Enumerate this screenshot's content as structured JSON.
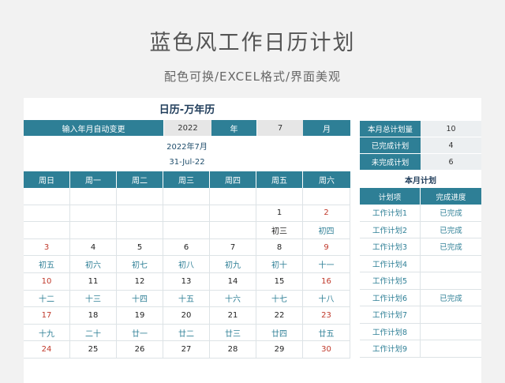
{
  "title": "蓝色风工作日历计划",
  "subtitle": "配色可换/EXCEL格式/界面美观",
  "calendar": {
    "heading": "日历-万年历",
    "input_label": "输入年月自动变更",
    "year_value": "2022",
    "year_label": "年",
    "month_value": "7",
    "month_label": "月",
    "year_month_display": "2022年7月",
    "date_display": "31-Jul-22",
    "weekdays": [
      "周日",
      "周一",
      "周二",
      "周三",
      "周四",
      "周五",
      "周六"
    ],
    "rows": [
      [
        {
          "t": ""
        },
        {
          "t": ""
        },
        {
          "t": ""
        },
        {
          "t": ""
        },
        {
          "t": ""
        },
        {
          "t": ""
        },
        {
          "t": ""
        }
      ],
      [
        {
          "t": ""
        },
        {
          "t": ""
        },
        {
          "t": ""
        },
        {
          "t": ""
        },
        {
          "t": ""
        },
        {
          "t": "1"
        },
        {
          "t": "2",
          "red": true
        }
      ],
      [
        {
          "t": ""
        },
        {
          "t": ""
        },
        {
          "t": ""
        },
        {
          "t": ""
        },
        {
          "t": ""
        },
        {
          "t": "初三"
        },
        {
          "t": "初四",
          "lunar": true
        }
      ],
      [
        {
          "t": "3",
          "red": true
        },
        {
          "t": "4"
        },
        {
          "t": "5"
        },
        {
          "t": "6"
        },
        {
          "t": "7"
        },
        {
          "t": "8"
        },
        {
          "t": "9",
          "red": true
        }
      ],
      [
        {
          "t": "初五",
          "lunar": true
        },
        {
          "t": "初六",
          "lunar": true
        },
        {
          "t": "初七",
          "lunar": true
        },
        {
          "t": "初八",
          "lunar": true
        },
        {
          "t": "初九",
          "lunar": true
        },
        {
          "t": "初十",
          "lunar": true
        },
        {
          "t": "十一",
          "lunar": true
        }
      ],
      [
        {
          "t": "10",
          "red": true
        },
        {
          "t": "11"
        },
        {
          "t": "12"
        },
        {
          "t": "13"
        },
        {
          "t": "14"
        },
        {
          "t": "15"
        },
        {
          "t": "16",
          "red": true
        }
      ],
      [
        {
          "t": "十二",
          "lunar": true
        },
        {
          "t": "十三",
          "lunar": true
        },
        {
          "t": "十四",
          "lunar": true
        },
        {
          "t": "十五",
          "lunar": true
        },
        {
          "t": "十六",
          "lunar": true
        },
        {
          "t": "十七",
          "lunar": true
        },
        {
          "t": "十八",
          "lunar": true
        }
      ],
      [
        {
          "t": "17",
          "red": true
        },
        {
          "t": "18"
        },
        {
          "t": "19"
        },
        {
          "t": "20"
        },
        {
          "t": "21"
        },
        {
          "t": "22"
        },
        {
          "t": "23",
          "red": true
        }
      ],
      [
        {
          "t": "十九",
          "lunar": true
        },
        {
          "t": "二十",
          "lunar": true
        },
        {
          "t": "廿一",
          "lunar": true
        },
        {
          "t": "廿二",
          "lunar": true
        },
        {
          "t": "廿三",
          "lunar": true
        },
        {
          "t": "廿四",
          "lunar": true
        },
        {
          "t": "廿五",
          "lunar": true
        }
      ],
      [
        {
          "t": "24",
          "red": true
        },
        {
          "t": "25"
        },
        {
          "t": "26"
        },
        {
          "t": "27"
        },
        {
          "t": "28"
        },
        {
          "t": "29"
        },
        {
          "t": "30",
          "red": true
        }
      ]
    ]
  },
  "summary": {
    "items": [
      {
        "label": "本月总计划量",
        "value": "10"
      },
      {
        "label": "已完成计划",
        "value": "4"
      },
      {
        "label": "未完成计划",
        "value": "6"
      }
    ]
  },
  "plans": {
    "heading": "本月计划",
    "col_item": "计划项",
    "col_progress": "完成进度",
    "rows": [
      {
        "name": "工作计划1",
        "status": "已完成"
      },
      {
        "name": "工作计划2",
        "status": "已完成"
      },
      {
        "name": "工作计划3",
        "status": "已完成"
      },
      {
        "name": "工作计划4",
        "status": ""
      },
      {
        "name": "工作计划5",
        "status": ""
      },
      {
        "name": "工作计划6",
        "status": "已完成"
      },
      {
        "name": "工作计划7",
        "status": ""
      },
      {
        "name": "工作计划8",
        "status": ""
      },
      {
        "name": "工作计划9",
        "status": ""
      }
    ]
  },
  "colors": {
    "accent": "#2e7f96",
    "weekend_red": "#c0392b",
    "heading_navy": "#1f3c5a"
  }
}
